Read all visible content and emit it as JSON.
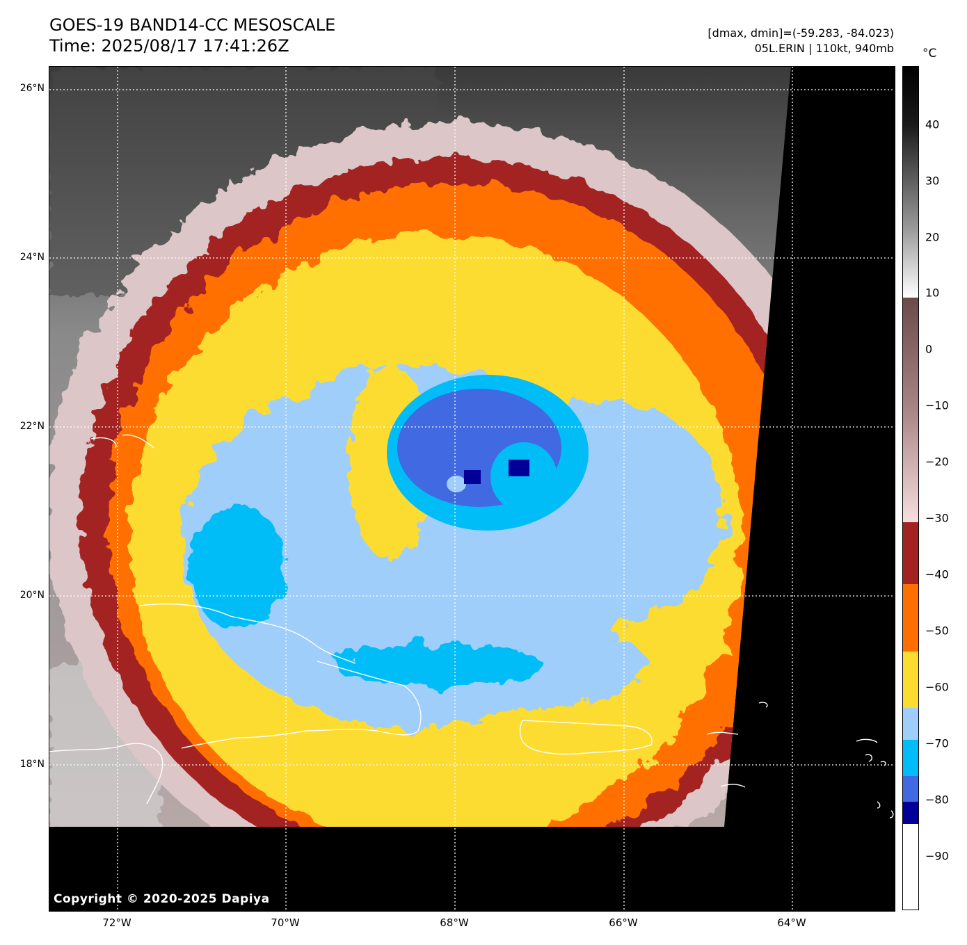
{
  "header": {
    "title_line1": "GOES-19 BAND14-CC MESOSCALE",
    "title_line2": "Time: 2025/08/17 17:41:26Z",
    "info_line1": "[dmax, dmin]=(-59.283, -84.023)",
    "info_line2": "05L.ERIN | 110kt, 940mb"
  },
  "map": {
    "copyright": "Copyright © 2020-2025 Dapiya",
    "lat_labels": [
      "26°N",
      "24°N",
      "22°N",
      "20°N",
      "18°N"
    ],
    "lon_labels": [
      "72°W",
      "70°W",
      "68°W",
      "66°W",
      "64°W"
    ],
    "colors": {
      "space": "#000000",
      "coast": "#ffffff",
      "grid": "#ffffff"
    }
  },
  "colorbar": {
    "unit": "°C",
    "tick_labels": [
      "40",
      "30",
      "20",
      "10",
      "0",
      "−10",
      "−20",
      "−30",
      "−40",
      "−50",
      "−60",
      "−70",
      "−80",
      "−90"
    ],
    "bands": [
      {
        "from": 50,
        "to": 10,
        "color": "gradient-black-white"
      },
      {
        "from": 10,
        "to": -30,
        "color": "gradient-brown-pink"
      },
      {
        "from": -30,
        "to": -41,
        "color": "#a32222"
      },
      {
        "from": -41,
        "to": -53,
        "color": "#ff6f00"
      },
      {
        "from": -53,
        "to": -63,
        "color": "#fddc30"
      },
      {
        "from": -63,
        "to": -69,
        "color": "#9fcefa"
      },
      {
        "from": -69,
        "to": -77,
        "color": "#00bdf7"
      },
      {
        "from": -77,
        "to": -81,
        "color": "#4169e1"
      },
      {
        "from": -81,
        "to": -85,
        "color": "#000099"
      },
      {
        "from": -85,
        "to": -100,
        "color": "#ffffff"
      }
    ]
  }
}
